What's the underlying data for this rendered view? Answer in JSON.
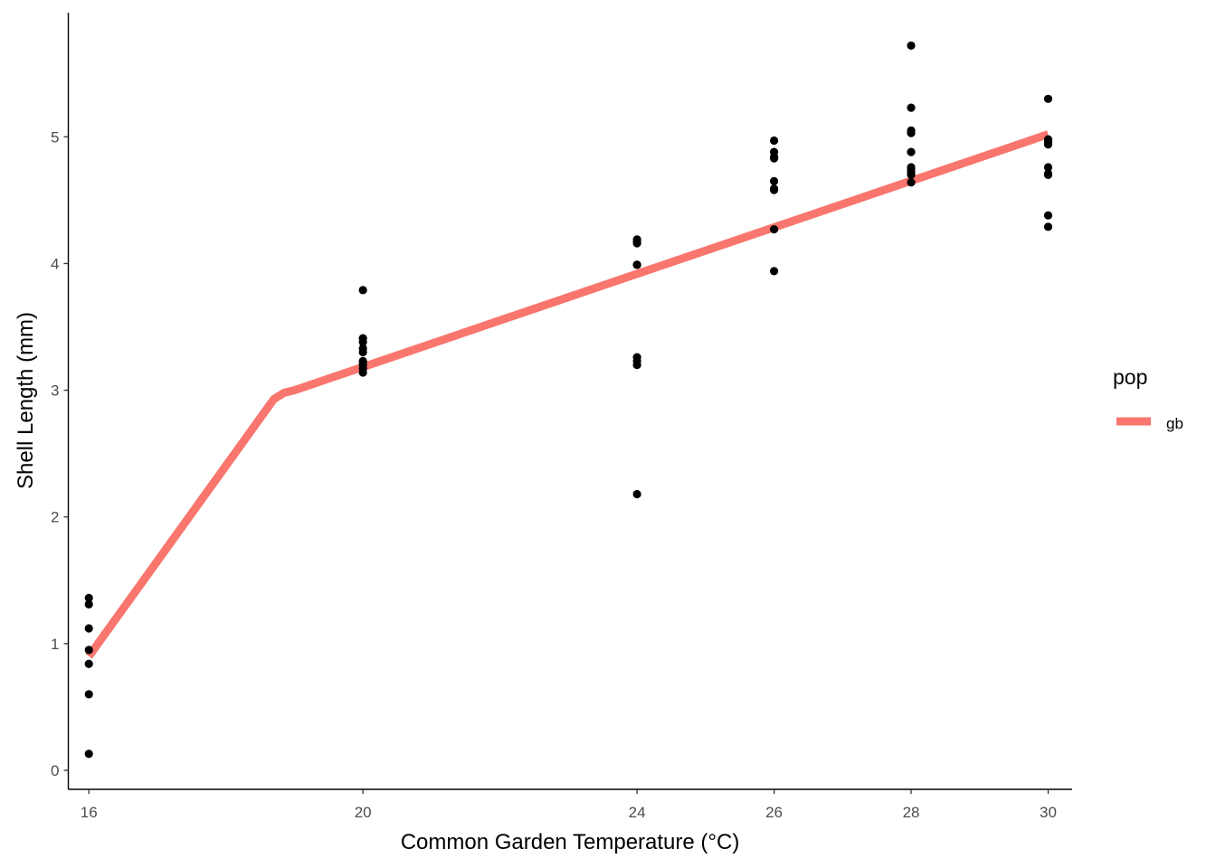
{
  "chart_data": {
    "type": "scatter",
    "title": "",
    "xlabel": "Common Garden Temperature (°C)",
    "ylabel": "Shell Length (mm)",
    "xlim": [
      15.7,
      30.35
    ],
    "ylim": [
      -0.15,
      5.98
    ],
    "xticks": [
      16,
      20,
      24,
      26,
      28,
      30
    ],
    "yticks": [
      0,
      1,
      2,
      3,
      4,
      5
    ],
    "grid": false,
    "points": {
      "name": "",
      "color": "#000000",
      "x": [
        16,
        16,
        16,
        16,
        16,
        16,
        16,
        20,
        20,
        20,
        20,
        20,
        20,
        20,
        20,
        20,
        20,
        24,
        24,
        24,
        24,
        24,
        24,
        24,
        24,
        24,
        26,
        26,
        26,
        26,
        26,
        26,
        26,
        26,
        26,
        28,
        28,
        28,
        28,
        28,
        28,
        28,
        28,
        28,
        28,
        30,
        30,
        30,
        30,
        30,
        30,
        30,
        30,
        30
      ],
      "y": [
        1.36,
        1.31,
        1.12,
        0.95,
        0.84,
        0.6,
        0.13,
        3.79,
        3.41,
        3.38,
        3.33,
        3.3,
        3.23,
        3.2,
        3.17,
        3.14,
        3.22,
        4.19,
        4.16,
        3.99,
        3.26,
        3.23,
        3.2,
        2.18,
        4.17,
        3.99,
        4.97,
        4.88,
        4.84,
        4.65,
        4.58,
        4.27,
        3.94,
        4.83,
        4.59,
        5.72,
        5.23,
        5.05,
        5.03,
        4.88,
        4.76,
        4.72,
        4.7,
        4.64,
        4.74,
        5.3,
        4.98,
        4.94,
        4.76,
        4.7,
        4.38,
        4.29,
        4.96,
        4.71
      ]
    },
    "series": [
      {
        "name": "gb",
        "color": "#F8766D",
        "x": [
          16,
          18.7,
          18.85,
          19.0,
          30
        ],
        "y": [
          0.9,
          2.93,
          2.98,
          3.0,
          5.02
        ]
      }
    ],
    "legend": {
      "title": "pop",
      "position": "right",
      "entries": [
        {
          "label": "gb",
          "color": "#F8766D"
        }
      ]
    }
  }
}
